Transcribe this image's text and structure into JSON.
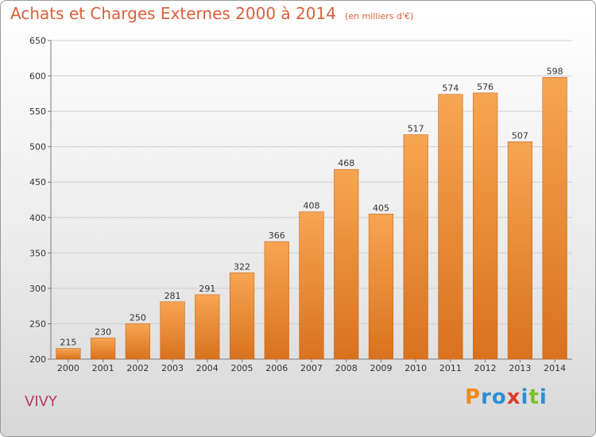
{
  "title": "Achats et Charges Externes 2000 à 2014",
  "unit_note": "(en milliers d'€)",
  "commune": "VIVY",
  "brand": {
    "letters": [
      "P",
      "r",
      "o",
      "x",
      "i",
      "t",
      "i"
    ],
    "colors": [
      "#f08a1c",
      "#2a8fd6",
      "#2a8fd6",
      "#e03a2a",
      "#2a8fd6",
      "#7bbf2a",
      "#2a8fd6"
    ]
  },
  "colors": {
    "title": "#d8603a",
    "commune": "#c03860",
    "bar_top": "#f7a552",
    "bar_bottom": "#d9721e"
  },
  "chart_data": {
    "type": "bar",
    "categories": [
      "2000",
      "2001",
      "2002",
      "2003",
      "2004",
      "2005",
      "2006",
      "2007",
      "2008",
      "2009",
      "2010",
      "2011",
      "2012",
      "2013",
      "2014"
    ],
    "values": [
      215,
      230,
      250,
      281,
      291,
      322,
      366,
      408,
      468,
      405,
      517,
      574,
      576,
      507,
      598
    ],
    "ylim": [
      200,
      650
    ],
    "yticks": [
      200,
      250,
      300,
      350,
      400,
      450,
      500,
      550,
      600,
      650
    ],
    "grid": true,
    "xlabel": "",
    "ylabel": ""
  }
}
